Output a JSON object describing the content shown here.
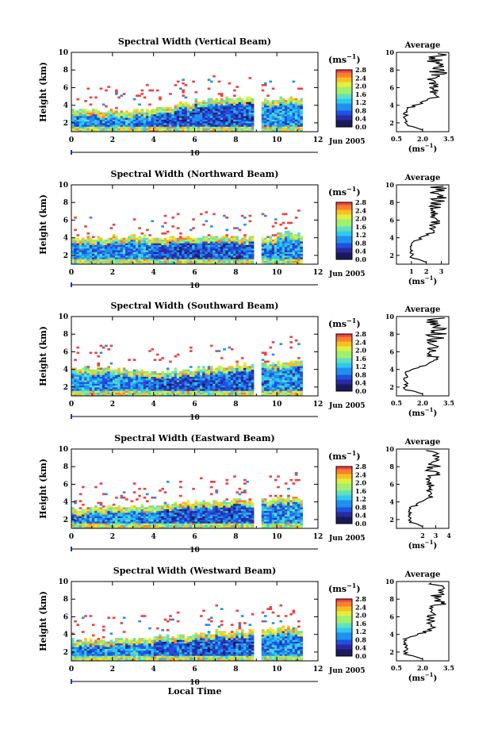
{
  "figure": {
    "xlabel": "Local Time",
    "cbar_unit": "(ms",
    "cbar_unit_exp": "−1",
    "cbar_unit_close": ")",
    "avg_title": "Average",
    "avg_xlabel": "(ms",
    "avg_xlabel_exp": "−1",
    "avg_xlabel_close": ")",
    "ylabel": "Height (km)",
    "date_label": "Jun 2005",
    "day_label": "10",
    "colors": {
      "scale": [
        "#1a1a5a",
        "#2a2aa0",
        "#2050e0",
        "#2090f0",
        "#30c8f0",
        "#60e0c0",
        "#a0f070",
        "#e0f040",
        "#f8c020",
        "#f88030",
        "#f04040"
      ],
      "gap": "#ffffff",
      "line": "#000000"
    }
  },
  "chart_data": [
    {
      "type": "heatmap",
      "title": "Spectral Width (Vertical Beam)",
      "x": {
        "range": [
          0,
          12
        ],
        "ticks": [
          0,
          2,
          4,
          6,
          8,
          10,
          12
        ]
      },
      "y": {
        "range": [
          1,
          10
        ],
        "ticks": [
          2,
          4,
          6,
          8,
          10
        ]
      },
      "colorbar": {
        "range": [
          0.0,
          2.8
        ],
        "ticks": [
          "0.0",
          "0.4",
          "0.8",
          "1.2",
          "1.6",
          "2.0",
          "2.4",
          "2.8"
        ]
      },
      "data_gap": [
        8.9,
        9.3
      ],
      "data_end": 11.2,
      "echo_top": [
        3.5,
        3.4,
        3.3,
        3.5,
        3.8,
        4.2,
        4.6,
        4.8,
        4.9,
        4.6,
        4.7,
        4.8
      ],
      "profile": {
        "xrange": [
          0.5,
          3.5
        ],
        "xticks": [
          "0.5",
          "2.0",
          "3.5"
        ],
        "yticks": [
          "2",
          "4",
          "6",
          "8",
          "10"
        ]
      }
    },
    {
      "type": "heatmap",
      "title": "Spectral Width (Northward Beam)",
      "x": {
        "range": [
          0,
          12
        ],
        "ticks": [
          0,
          2,
          4,
          6,
          8,
          10,
          12
        ]
      },
      "y": {
        "range": [
          1,
          10
        ],
        "ticks": [
          2,
          4,
          6,
          8,
          10
        ]
      },
      "colorbar": {
        "range": [
          0.0,
          2.8
        ],
        "ticks": [
          "0.0",
          "0.4",
          "0.8",
          "1.2",
          "1.6",
          "2.0",
          "2.4",
          "2.8"
        ]
      },
      "data_gap": [
        8.9,
        9.3
      ],
      "data_end": 11.2,
      "echo_top": [
        4.0,
        4.0,
        4.1,
        4.1,
        4.0,
        4.0,
        4.1,
        4.1,
        4.0,
        4.0,
        4.5,
        4.4
      ],
      "profile": {
        "xrange": [
          0.0,
          3.5
        ],
        "xticks": [
          "1",
          "2",
          "3"
        ],
        "yticks": [
          "2",
          "4",
          "6",
          "8",
          "10"
        ]
      }
    },
    {
      "type": "heatmap",
      "title": "Spectral Width (Southward Beam)",
      "x": {
        "range": [
          0,
          12
        ],
        "ticks": [
          0,
          2,
          4,
          6,
          8,
          10,
          12
        ]
      },
      "y": {
        "range": [
          1,
          10
        ],
        "ticks": [
          2,
          4,
          6,
          8,
          10
        ]
      },
      "colorbar": {
        "range": [
          0.0,
          2.8
        ],
        "ticks": [
          "0.0",
          "0.4",
          "0.8",
          "1.2",
          "1.6",
          "2.0",
          "2.4",
          "2.8"
        ]
      },
      "data_gap": [
        8.9,
        9.3
      ],
      "data_end": 11.2,
      "echo_top": [
        4.2,
        4.1,
        4.0,
        3.9,
        3.8,
        3.9,
        4.2,
        4.4,
        4.5,
        4.6,
        4.9,
        4.8
      ],
      "profile": {
        "xrange": [
          0.5,
          3.5
        ],
        "xticks": [
          "0.5",
          "2.0",
          "3.5"
        ],
        "yticks": [
          "2",
          "4",
          "6",
          "8",
          "10"
        ]
      }
    },
    {
      "type": "heatmap",
      "title": "Spectral Width (Eastward Beam)",
      "x": {
        "range": [
          0,
          12
        ],
        "ticks": [
          0,
          2,
          4,
          6,
          8,
          10,
          12
        ]
      },
      "y": {
        "range": [
          1,
          10
        ],
        "ticks": [
          2,
          4,
          6,
          8,
          10
        ]
      },
      "colorbar": {
        "range": [
          0.0,
          2.8
        ],
        "ticks": [
          "0.0",
          "0.4",
          "0.8",
          "1.2",
          "1.6",
          "2.0",
          "2.4",
          "2.8"
        ]
      },
      "data_gap": [
        8.9,
        9.3
      ],
      "data_end": 11.2,
      "echo_top": [
        3.3,
        3.4,
        3.5,
        3.5,
        3.6,
        3.9,
        4.1,
        4.2,
        4.2,
        4.3,
        4.5,
        4.3
      ],
      "profile": {
        "xrange": [
          0.0,
          4.0
        ],
        "xticks": [
          "2",
          "3",
          "4"
        ],
        "yticks": [
          "2",
          "4",
          "6",
          "8",
          "10"
        ]
      }
    },
    {
      "type": "heatmap",
      "title": "Spectral Width (Westward Beam)",
      "x": {
        "range": [
          0,
          12
        ],
        "ticks": [
          0,
          2,
          4,
          6,
          8,
          10,
          12
        ]
      },
      "y": {
        "range": [
          1,
          10
        ],
        "ticks": [
          2,
          4,
          6,
          8,
          10
        ]
      },
      "colorbar": {
        "range": [
          0.0,
          2.8
        ],
        "ticks": [
          "0.0",
          "0.4",
          "0.8",
          "1.2",
          "1.6",
          "2.0",
          "2.4",
          "2.8"
        ]
      },
      "data_gap": [
        8.9,
        9.3
      ],
      "data_end": 11.2,
      "echo_top": [
        3.4,
        3.3,
        3.4,
        3.5,
        3.8,
        3.9,
        4.1,
        4.3,
        4.4,
        4.5,
        4.8,
        4.6
      ],
      "profile": {
        "xrange": [
          0.5,
          3.5
        ],
        "xticks": [
          "0.5",
          "2.0",
          "3.5"
        ],
        "yticks": [
          "2",
          "4",
          "6",
          "8",
          "10"
        ]
      }
    }
  ]
}
